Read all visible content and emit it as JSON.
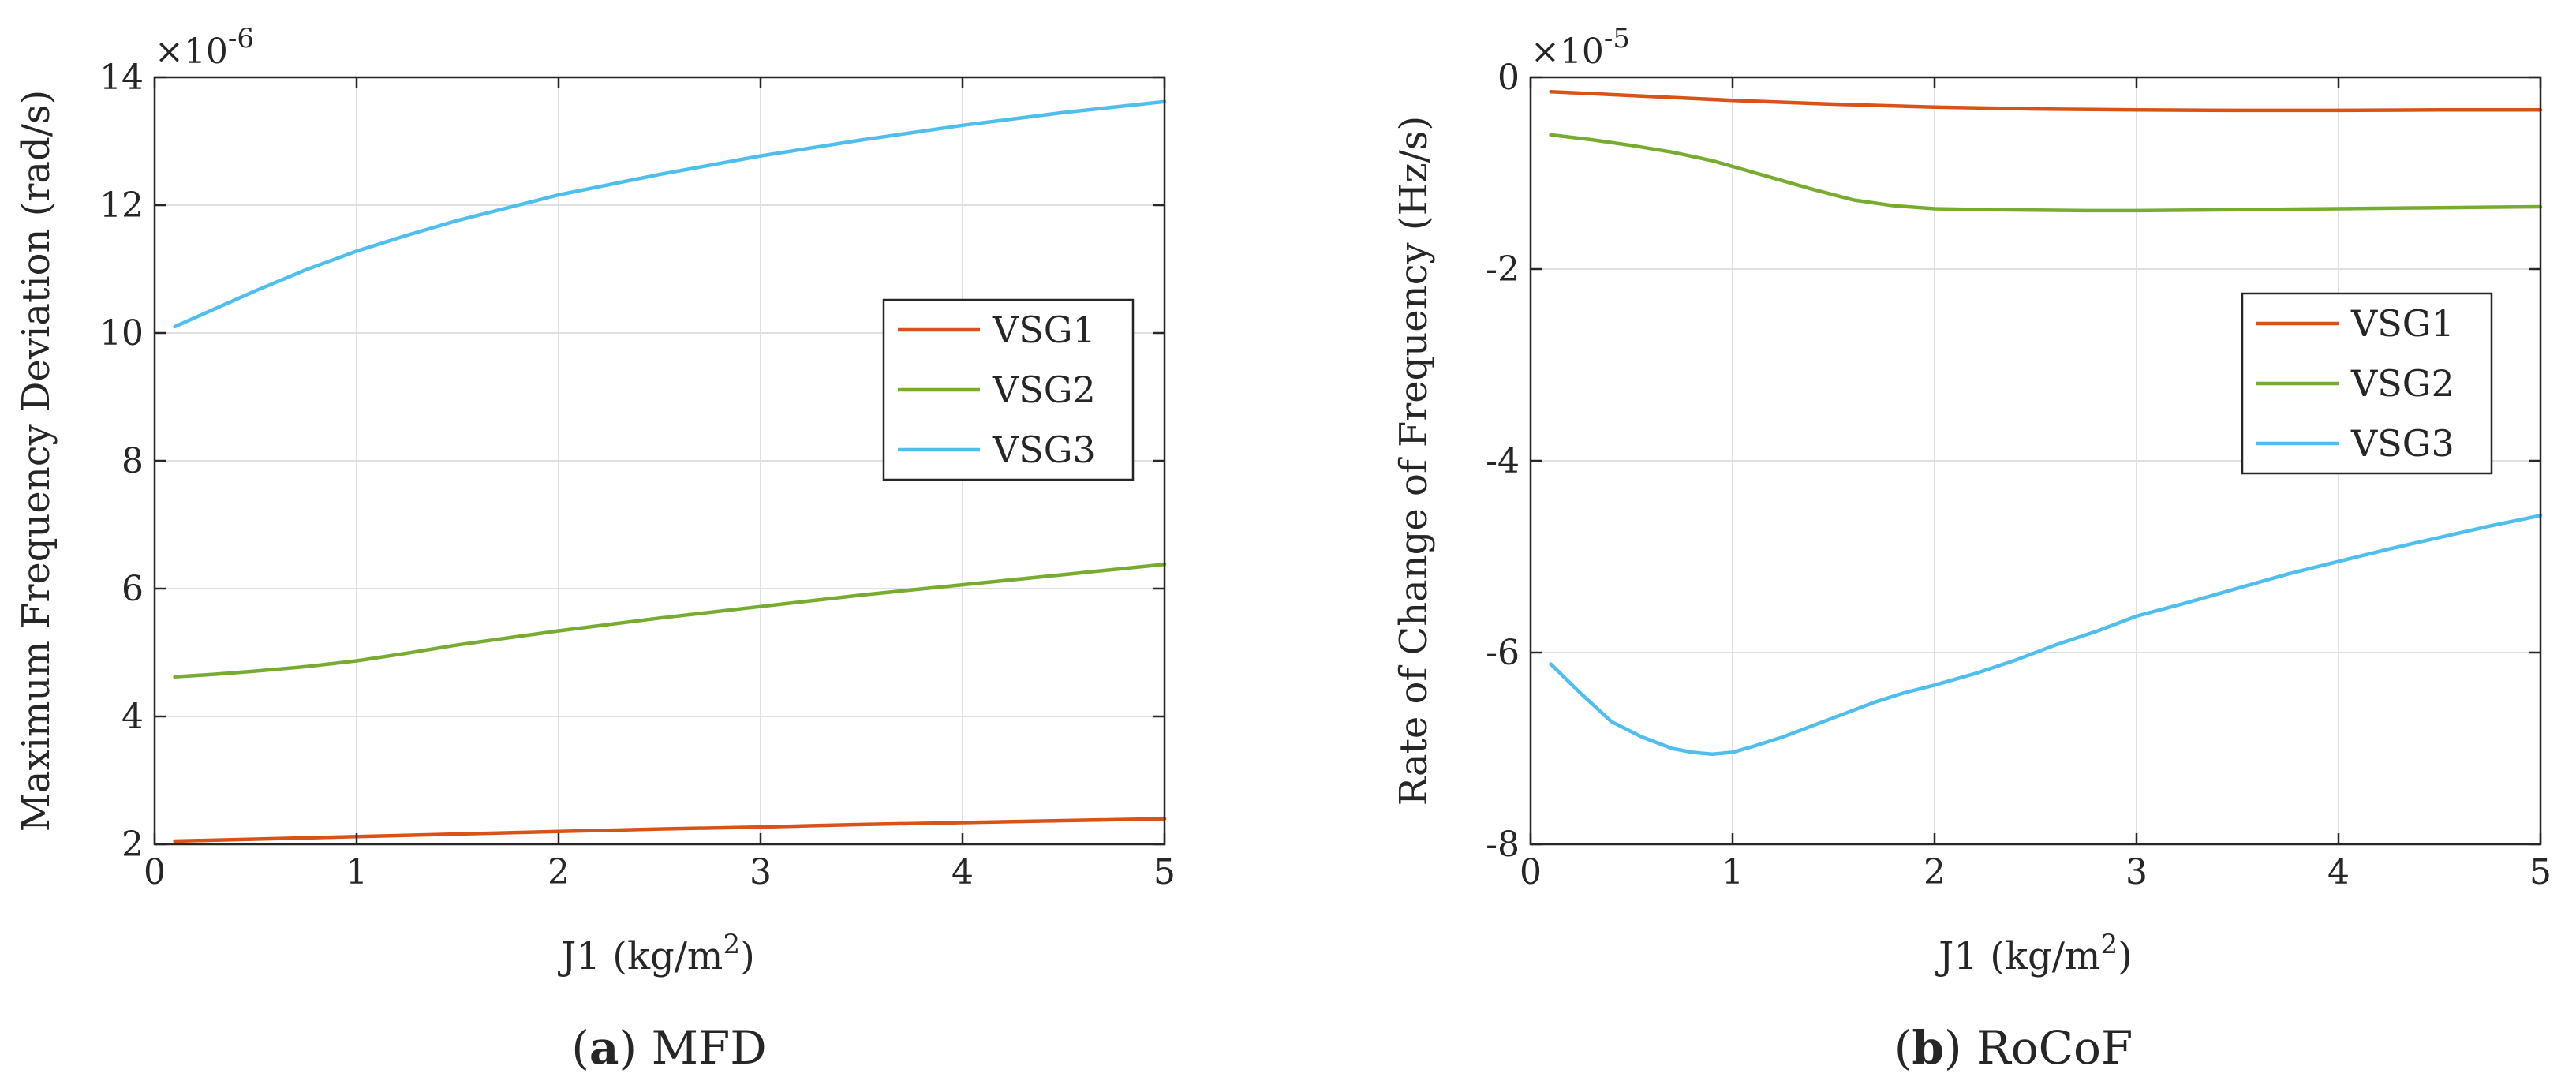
{
  "colors": {
    "VSG1": "#D95319",
    "VSG2": "#77AC30",
    "VSG3": "#4DBEEE",
    "axis": "#262626",
    "grid": "#DFDFDF"
  },
  "chart_data": [
    {
      "type": "line",
      "panel_letter": "a",
      "caption": " MFD",
      "exponent_base": "×10",
      "exponent_power": "-6",
      "xlabel": "J1 (kg/m",
      "xlabel_sup": "2",
      "xlabel_end": ")",
      "ylabel": "Maximum Frequency Deviation (rad/s)",
      "xlim": [
        0,
        5
      ],
      "ylim": [
        2,
        14
      ],
      "xticks": [
        0,
        1,
        2,
        3,
        4,
        5
      ],
      "yticks": [
        2,
        4,
        6,
        8,
        10,
        12,
        14
      ],
      "grid": true,
      "legend": "right, upper-middle",
      "series": [
        {
          "name": "VSG1",
          "x": [
            0.1,
            0.5,
            1,
            1.5,
            2,
            2.5,
            3,
            3.5,
            4,
            4.5,
            5
          ],
          "y": [
            2.05,
            2.08,
            2.12,
            2.16,
            2.2,
            2.24,
            2.27,
            2.31,
            2.34,
            2.37,
            2.4
          ]
        },
        {
          "name": "VSG2",
          "x": [
            0.1,
            0.3,
            0.5,
            0.75,
            1,
            1.25,
            1.5,
            2,
            2.5,
            3,
            3.5,
            4,
            4.5,
            5
          ],
          "y": [
            4.62,
            4.66,
            4.71,
            4.78,
            4.87,
            4.99,
            5.12,
            5.34,
            5.54,
            5.72,
            5.9,
            6.06,
            6.22,
            6.38
          ]
        },
        {
          "name": "VSG3",
          "x": [
            0.1,
            0.3,
            0.5,
            0.75,
            1,
            1.25,
            1.5,
            2,
            2.5,
            3,
            3.5,
            4,
            4.5,
            5
          ],
          "y": [
            10.1,
            10.38,
            10.66,
            10.99,
            11.28,
            11.53,
            11.76,
            12.16,
            12.48,
            12.77,
            13.02,
            13.25,
            13.45,
            13.62
          ]
        }
      ]
    },
    {
      "type": "line",
      "panel_letter": "b",
      "caption": " RoCoF",
      "exponent_base": "×10",
      "exponent_power": "-5",
      "xlabel": "J1 (kg/m",
      "xlabel_sup": "2",
      "xlabel_end": ")",
      "ylabel": "Rate of Change of Frequency (Hz/s)",
      "xlim": [
        0,
        5
      ],
      "ylim": [
        -8,
        0
      ],
      "xticks": [
        0,
        1,
        2,
        3,
        4,
        5
      ],
      "yticks": [
        0,
        -2,
        -4,
        -6,
        -8
      ],
      "grid": true,
      "legend": "right, middle",
      "series": [
        {
          "name": "VSG1",
          "x": [
            0.1,
            0.5,
            1,
            1.5,
            2,
            2.5,
            3,
            3.5,
            4,
            4.5,
            5
          ],
          "y": [
            -0.15,
            -0.19,
            -0.24,
            -0.28,
            -0.31,
            -0.33,
            -0.34,
            -0.345,
            -0.345,
            -0.34,
            -0.34
          ]
        },
        {
          "name": "VSG2",
          "x": [
            0.1,
            0.3,
            0.5,
            0.7,
            0.9,
            1,
            1.2,
            1.4,
            1.6,
            1.8,
            2,
            2.25,
            2.5,
            2.75,
            3,
            3.5,
            4,
            4.5,
            5
          ],
          "y": [
            -0.6,
            -0.65,
            -0.71,
            -0.78,
            -0.87,
            -0.93,
            -1.05,
            -1.17,
            -1.28,
            -1.34,
            -1.37,
            -1.38,
            -1.385,
            -1.39,
            -1.39,
            -1.38,
            -1.37,
            -1.36,
            -1.35
          ]
        },
        {
          "name": "VSG3",
          "x": [
            0.1,
            0.25,
            0.4,
            0.55,
            0.7,
            0.8,
            0.9,
            1,
            1.1,
            1.25,
            1.4,
            1.55,
            1.7,
            1.85,
            2,
            2.2,
            2.4,
            2.6,
            2.8,
            3,
            3.25,
            3.5,
            3.75,
            4,
            4.25,
            4.5,
            4.75,
            5
          ],
          "y": [
            -6.12,
            -6.43,
            -6.72,
            -6.88,
            -7.0,
            -7.04,
            -7.06,
            -7.04,
            -6.98,
            -6.88,
            -6.76,
            -6.64,
            -6.52,
            -6.42,
            -6.34,
            -6.22,
            -6.08,
            -5.92,
            -5.78,
            -5.62,
            -5.48,
            -5.33,
            -5.18,
            -5.05,
            -4.92,
            -4.8,
            -4.68,
            -4.57
          ]
        }
      ]
    }
  ]
}
